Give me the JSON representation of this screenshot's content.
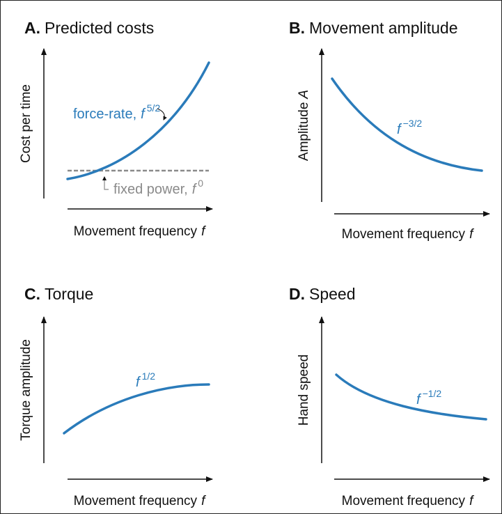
{
  "panels": [
    {
      "letter": "A.",
      "title": "Predicted costs",
      "ylabel": "Cost per time",
      "xlabel": "Movement frequency",
      "xvar": "f",
      "annotations": [
        {
          "text": "force-rate,",
          "base": "f",
          "exp": "5/2"
        },
        {
          "text": "fixed power,",
          "base": "f",
          "exp": "0"
        }
      ]
    },
    {
      "letter": "B.",
      "title": "Movement amplitude",
      "ylabel": "Amplitude",
      "yvar": "A",
      "xlabel": "Movement frequency",
      "xvar": "f",
      "annotations": [
        {
          "base": "f",
          "exp": "−3/2"
        }
      ]
    },
    {
      "letter": "C.",
      "title": "Torque",
      "ylabel": "Torque amplitude",
      "xlabel": "Movement frequency",
      "xvar": "f",
      "annotations": [
        {
          "base": "f",
          "exp": "1/2"
        }
      ]
    },
    {
      "letter": "D.",
      "title": "Speed",
      "ylabel": "Hand speed",
      "xlabel": "Movement frequency",
      "xvar": "f",
      "annotations": [
        {
          "base": "f",
          "exp": "−1/2"
        }
      ]
    }
  ]
}
